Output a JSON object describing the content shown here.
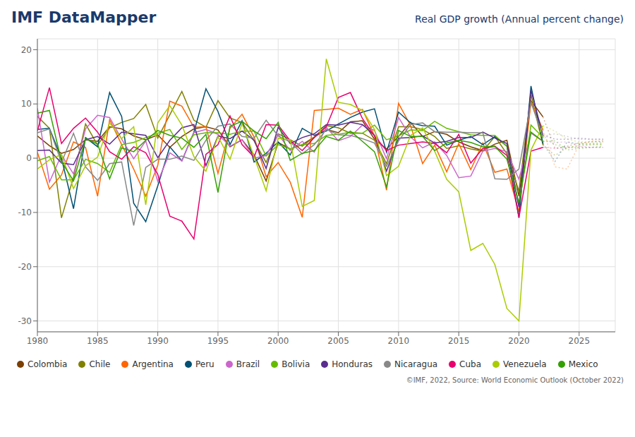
{
  "chart_data": {
    "type": "line",
    "title": "IMF DataMapper",
    "subtitle": "Real GDP growth (Annual percent change)",
    "annotations": [
      "©IMF, 2022, Source: World Economic Outlook (October 2022)"
    ],
    "x": [
      1980,
      1981,
      1982,
      1983,
      1984,
      1985,
      1986,
      1987,
      1988,
      1989,
      1990,
      1991,
      1992,
      1993,
      1994,
      1995,
      1996,
      1997,
      1998,
      1999,
      2000,
      2001,
      2002,
      2003,
      2004,
      2005,
      2006,
      2007,
      2008,
      2009,
      2010,
      2011,
      2012,
      2013,
      2014,
      2015,
      2016,
      2017,
      2018,
      2019,
      2020,
      2021,
      2022,
      2023,
      2024,
      2025,
      2026,
      2027
    ],
    "forecast_start": 2022,
    "xlim": [
      1980,
      2028
    ],
    "ylim": [
      -32,
      22
    ],
    "xticks": [
      1980,
      1985,
      1990,
      1995,
      2000,
      2005,
      2010,
      2015,
      2020,
      2025
    ],
    "yticks": [
      20,
      10,
      0,
      -10,
      -20,
      -30
    ],
    "grid": true,
    "legend": "bottom",
    "series": [
      {
        "name": "Colombia",
        "color": "#7B3F00",
        "values": [
          4.1,
          2.3,
          0.9,
          1.6,
          3.4,
          3.1,
          5.8,
          5.4,
          4.1,
          3.4,
          4.3,
          2.0,
          4.0,
          5.4,
          5.8,
          5.2,
          2.1,
          3.4,
          0.6,
          -4.2,
          2.9,
          1.7,
          2.5,
          3.9,
          5.3,
          4.7,
          6.7,
          6.9,
          3.5,
          1.7,
          4.0,
          6.6,
          4.0,
          4.9,
          4.4,
          3.0,
          2.1,
          1.4,
          2.6,
          3.3,
          -7.0,
          10.6,
          7.6,
          1.8,
          2.2,
          2.8,
          3.0,
          3.2
        ]
      },
      {
        "name": "Chile",
        "color": "#808000",
        "values": [
          7.7,
          5.5,
          -11.0,
          -3.5,
          6.3,
          2.4,
          5.6,
          6.6,
          7.3,
          9.9,
          3.7,
          8.0,
          12.3,
          7.0,
          5.7,
          10.6,
          7.4,
          6.6,
          3.2,
          -0.8,
          4.5,
          3.4,
          2.2,
          3.9,
          6.0,
          5.6,
          4.6,
          4.6,
          3.3,
          -1.0,
          5.8,
          5.8,
          5.3,
          4.0,
          1.8,
          2.3,
          1.7,
          1.3,
          4.0,
          0.8,
          -6.1,
          11.7,
          2.4,
          0.5,
          2.0,
          2.2,
          2.5,
          2.5
        ]
      },
      {
        "name": "Argentina",
        "color": "#FF6600",
        "values": [
          1.1,
          -5.7,
          -3.1,
          3.0,
          2.0,
          -7.0,
          7.1,
          2.5,
          -2.0,
          -7.0,
          -1.3,
          10.5,
          9.6,
          5.7,
          5.8,
          -2.8,
          5.5,
          8.1,
          3.9,
          -3.4,
          -0.8,
          -4.4,
          -10.9,
          8.8,
          9.0,
          9.2,
          8.1,
          9.0,
          4.1,
          -5.9,
          10.1,
          6.0,
          -1.0,
          2.4,
          -2.5,
          2.7,
          -2.1,
          2.8,
          -2.6,
          -2.0,
          -9.9,
          10.4,
          5.2,
          -1.6,
          -2.0,
          2.5,
          3.2,
          3.0
        ]
      },
      {
        "name": "Peru",
        "color": "#005073",
        "values": [
          5.3,
          5.5,
          0.0,
          -9.3,
          3.8,
          2.1,
          12.1,
          7.7,
          -8.3,
          -11.7,
          -5.1,
          2.1,
          -0.5,
          4.8,
          12.8,
          8.6,
          2.5,
          6.9,
          -0.7,
          0.9,
          3.0,
          0.6,
          5.5,
          4.2,
          5.0,
          6.3,
          7.5,
          8.5,
          9.1,
          1.1,
          8.5,
          6.5,
          6.0,
          5.9,
          2.4,
          3.3,
          4.0,
          2.5,
          4.0,
          2.2,
          -11.0,
          13.3,
          2.7,
          -0.6,
          3.0,
          2.6,
          2.7,
          2.8
        ]
      },
      {
        "name": "Brazil",
        "color": "#CC66CC",
        "values": [
          9.2,
          -4.4,
          0.6,
          -2.9,
          5.4,
          7.9,
          7.5,
          3.5,
          -0.1,
          3.2,
          -4.3,
          1.0,
          -0.5,
          4.7,
          5.3,
          4.4,
          2.2,
          3.4,
          0.0,
          0.5,
          4.4,
          1.4,
          3.1,
          1.1,
          5.7,
          3.2,
          4.0,
          6.1,
          5.1,
          -0.1,
          7.5,
          3.9,
          1.9,
          3.0,
          0.5,
          -3.6,
          -3.3,
          1.3,
          1.8,
          1.2,
          -3.9,
          4.6,
          3.1,
          2.9,
          3.0,
          2.2,
          2.0,
          2.0
        ]
      },
      {
        "name": "Bolivia",
        "color": "#66BB00",
        "values": [
          -0.5,
          0.3,
          -4.0,
          -4.0,
          -0.2,
          -1.0,
          -2.6,
          2.5,
          2.9,
          3.8,
          4.6,
          5.3,
          1.6,
          4.3,
          4.7,
          4.7,
          4.4,
          5.0,
          5.0,
          0.4,
          2.5,
          1.7,
          2.5,
          2.7,
          4.2,
          4.4,
          4.8,
          4.6,
          6.1,
          3.4,
          4.1,
          5.2,
          5.1,
          6.8,
          5.5,
          4.9,
          4.3,
          4.2,
          4.2,
          2.2,
          -8.8,
          6.1,
          3.8,
          2.5,
          1.8,
          2.5,
          2.5,
          2.5
        ]
      },
      {
        "name": "Honduras",
        "color": "#5B2D8E",
        "values": [
          1.4,
          1.5,
          -0.9,
          -1.2,
          3.4,
          4.0,
          2.6,
          4.8,
          4.5,
          4.2,
          0.1,
          3.3,
          5.6,
          6.2,
          -1.4,
          4.1,
          3.6,
          5.0,
          3.3,
          -1.9,
          5.7,
          2.7,
          3.8,
          4.5,
          6.2,
          6.1,
          6.6,
          6.2,
          4.2,
          -2.4,
          3.7,
          3.8,
          4.1,
          2.8,
          3.1,
          3.8,
          3.8,
          4.8,
          3.7,
          2.7,
          -9.0,
          12.5,
          4.2,
          3.5,
          3.5,
          3.7,
          3.5,
          3.5
        ]
      },
      {
        "name": "Nicaragua",
        "color": "#888888",
        "values": [
          4.7,
          5.4,
          -0.8,
          4.6,
          -1.6,
          -4.1,
          -1.0,
          -0.7,
          -12.4,
          -1.7,
          -0.2,
          -0.2,
          0.4,
          -0.4,
          3.3,
          5.9,
          6.3,
          4.0,
          3.7,
          7.0,
          4.1,
          3.0,
          0.8,
          2.5,
          5.3,
          4.3,
          4.2,
          3.6,
          2.8,
          -1.5,
          3.2,
          6.2,
          6.5,
          4.9,
          4.8,
          4.8,
          4.7,
          4.7,
          -3.8,
          -3.9,
          -2.0,
          10.3,
          4.0,
          4.5,
          4.0,
          3.5,
          3.5,
          3.5
        ]
      },
      {
        "name": "Cuba",
        "color": "#E8006F",
        "values": [
          5.0,
          13.0,
          2.7,
          5.5,
          7.4,
          4.8,
          1.2,
          -0.2,
          2.1,
          1.0,
          -3.0,
          -10.7,
          -11.6,
          -14.9,
          0.7,
          2.5,
          7.8,
          2.5,
          0.2,
          6.2,
          6.1,
          3.2,
          1.4,
          3.8,
          5.8,
          11.2,
          12.1,
          7.3,
          4.1,
          1.4,
          2.4,
          2.7,
          3.0,
          2.7,
          1.0,
          4.4,
          -0.9,
          1.8,
          2.2,
          0.5,
          -10.9,
          1.3,
          2.0,
          1.8,
          2.0,
          2.0,
          2.0,
          2.0
        ]
      },
      {
        "name": "Venezuela",
        "color": "#AACC00",
        "values": [
          -2.0,
          -0.3,
          0.7,
          -5.6,
          -1.4,
          0.2,
          6.5,
          3.6,
          5.8,
          -8.6,
          6.5,
          9.7,
          6.1,
          0.3,
          -2.4,
          4.0,
          -0.2,
          6.4,
          0.3,
          -6.0,
          3.7,
          3.4,
          -8.9,
          -7.8,
          18.3,
          10.3,
          9.9,
          8.8,
          5.3,
          -3.2,
          -1.5,
          4.2,
          5.6,
          1.3,
          -3.9,
          -6.2,
          -17.0,
          -15.7,
          -19.6,
          -27.7,
          -30.0,
          1.5,
          6.0,
          5.0,
          3.5,
          3.0,
          3.0,
          3.0
        ]
      },
      {
        "name": "Mexico",
        "color": "#33A000",
        "values": [
          8.3,
          8.8,
          -0.6,
          -4.2,
          3.6,
          2.6,
          -3.8,
          1.9,
          1.2,
          3.3,
          5.1,
          4.2,
          3.7,
          2.0,
          4.4,
          -6.3,
          5.9,
          6.8,
          5.0,
          3.6,
          6.6,
          -0.4,
          0.9,
          1.4,
          4.0,
          3.3,
          5.0,
          3.1,
          1.2,
          -5.3,
          5.1,
          4.0,
          4.0,
          1.4,
          2.8,
          3.3,
          2.9,
          2.1,
          2.2,
          -0.2,
          -8.2,
          4.8,
          3.1,
          3.2,
          1.5,
          1.8,
          2.0,
          2.2
        ]
      }
    ]
  }
}
